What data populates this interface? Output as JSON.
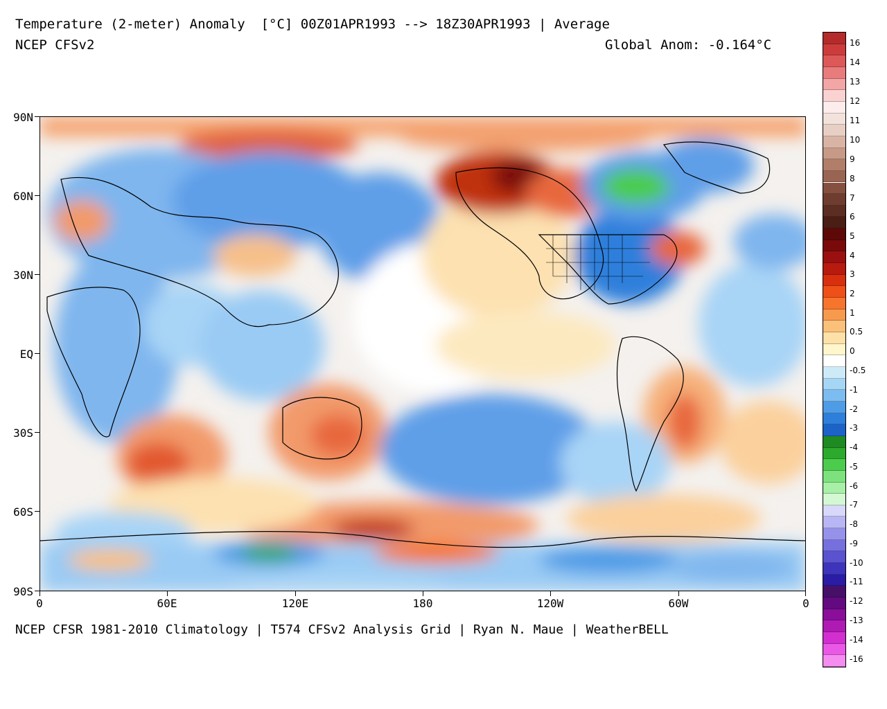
{
  "header": {
    "title_line": "Temperature (2-meter) Anomaly  [°C] 00Z01APR1993 --> 18Z30APR1993 | Average",
    "model": "NCEP CFSv2",
    "global_anom": "Global Anom: -0.164°C"
  },
  "footer": {
    "credit": "NCEP CFSR 1981-2010 Climatology | T574 CFSv2 Analysis Grid | Ryan N. Maue | WeatherBELL"
  },
  "axes": {
    "lat_labels": [
      "90N",
      "60N",
      "30N",
      "EQ",
      "30S",
      "60S",
      "90S"
    ],
    "lon_labels": [
      "0",
      "60E",
      "120E",
      "180",
      "120W",
      "60W",
      "0"
    ]
  },
  "colorbar": {
    "labels": [
      "16",
      "14",
      "13",
      "12",
      "11",
      "10",
      "9",
      "8",
      "7",
      "6",
      "5",
      "4",
      "3",
      "2",
      "1",
      "0.5",
      "0",
      "-0.5",
      "-1",
      "-2",
      "-3",
      "-4",
      "-5",
      "-6",
      "-7",
      "-8",
      "-9",
      "-10",
      "-11",
      "-12",
      "-13",
      "-14",
      "-16"
    ],
    "colors": [
      "#b52a2a",
      "#cc3c3c",
      "#dd5858",
      "#e87c7c",
      "#f2a6a6",
      "#fad2d2",
      "#fdecec",
      "#f3e2dc",
      "#e8cfc4",
      "#d9b4a4",
      "#c69a86",
      "#b17e6a",
      "#9a6452",
      "#85503f",
      "#6f3d2f",
      "#5c2d22",
      "#4a1d15",
      "#5e0808",
      "#7a0a0a",
      "#9a1010",
      "#b81a10",
      "#d8300e",
      "#ee5018",
      "#f6742c",
      "#f89a4e",
      "#fbc07a",
      "#fde1a8",
      "#fff6cc",
      "#ffffff",
      "#cdeaf8",
      "#a6d6f6",
      "#7cbcf0",
      "#4f9ce6",
      "#2d7fdb",
      "#1c63c8",
      "#1e8a22",
      "#2daa2d",
      "#4ccc4c",
      "#7de27d",
      "#a8efa8",
      "#d4f8d4",
      "#d8d8fa",
      "#b8b6f4",
      "#9692ea",
      "#7670de",
      "#5a52cf",
      "#3e34bc",
      "#2a1ca4",
      "#461068",
      "#640a80",
      "#8a0e9a",
      "#b01ab4",
      "#d22ed0",
      "#ea58e6",
      "#f58cf0"
    ]
  },
  "map_legend": {
    "projection": "equirectangular",
    "lon_range": [
      0,
      360
    ],
    "lat_range": [
      -90,
      90
    ]
  }
}
